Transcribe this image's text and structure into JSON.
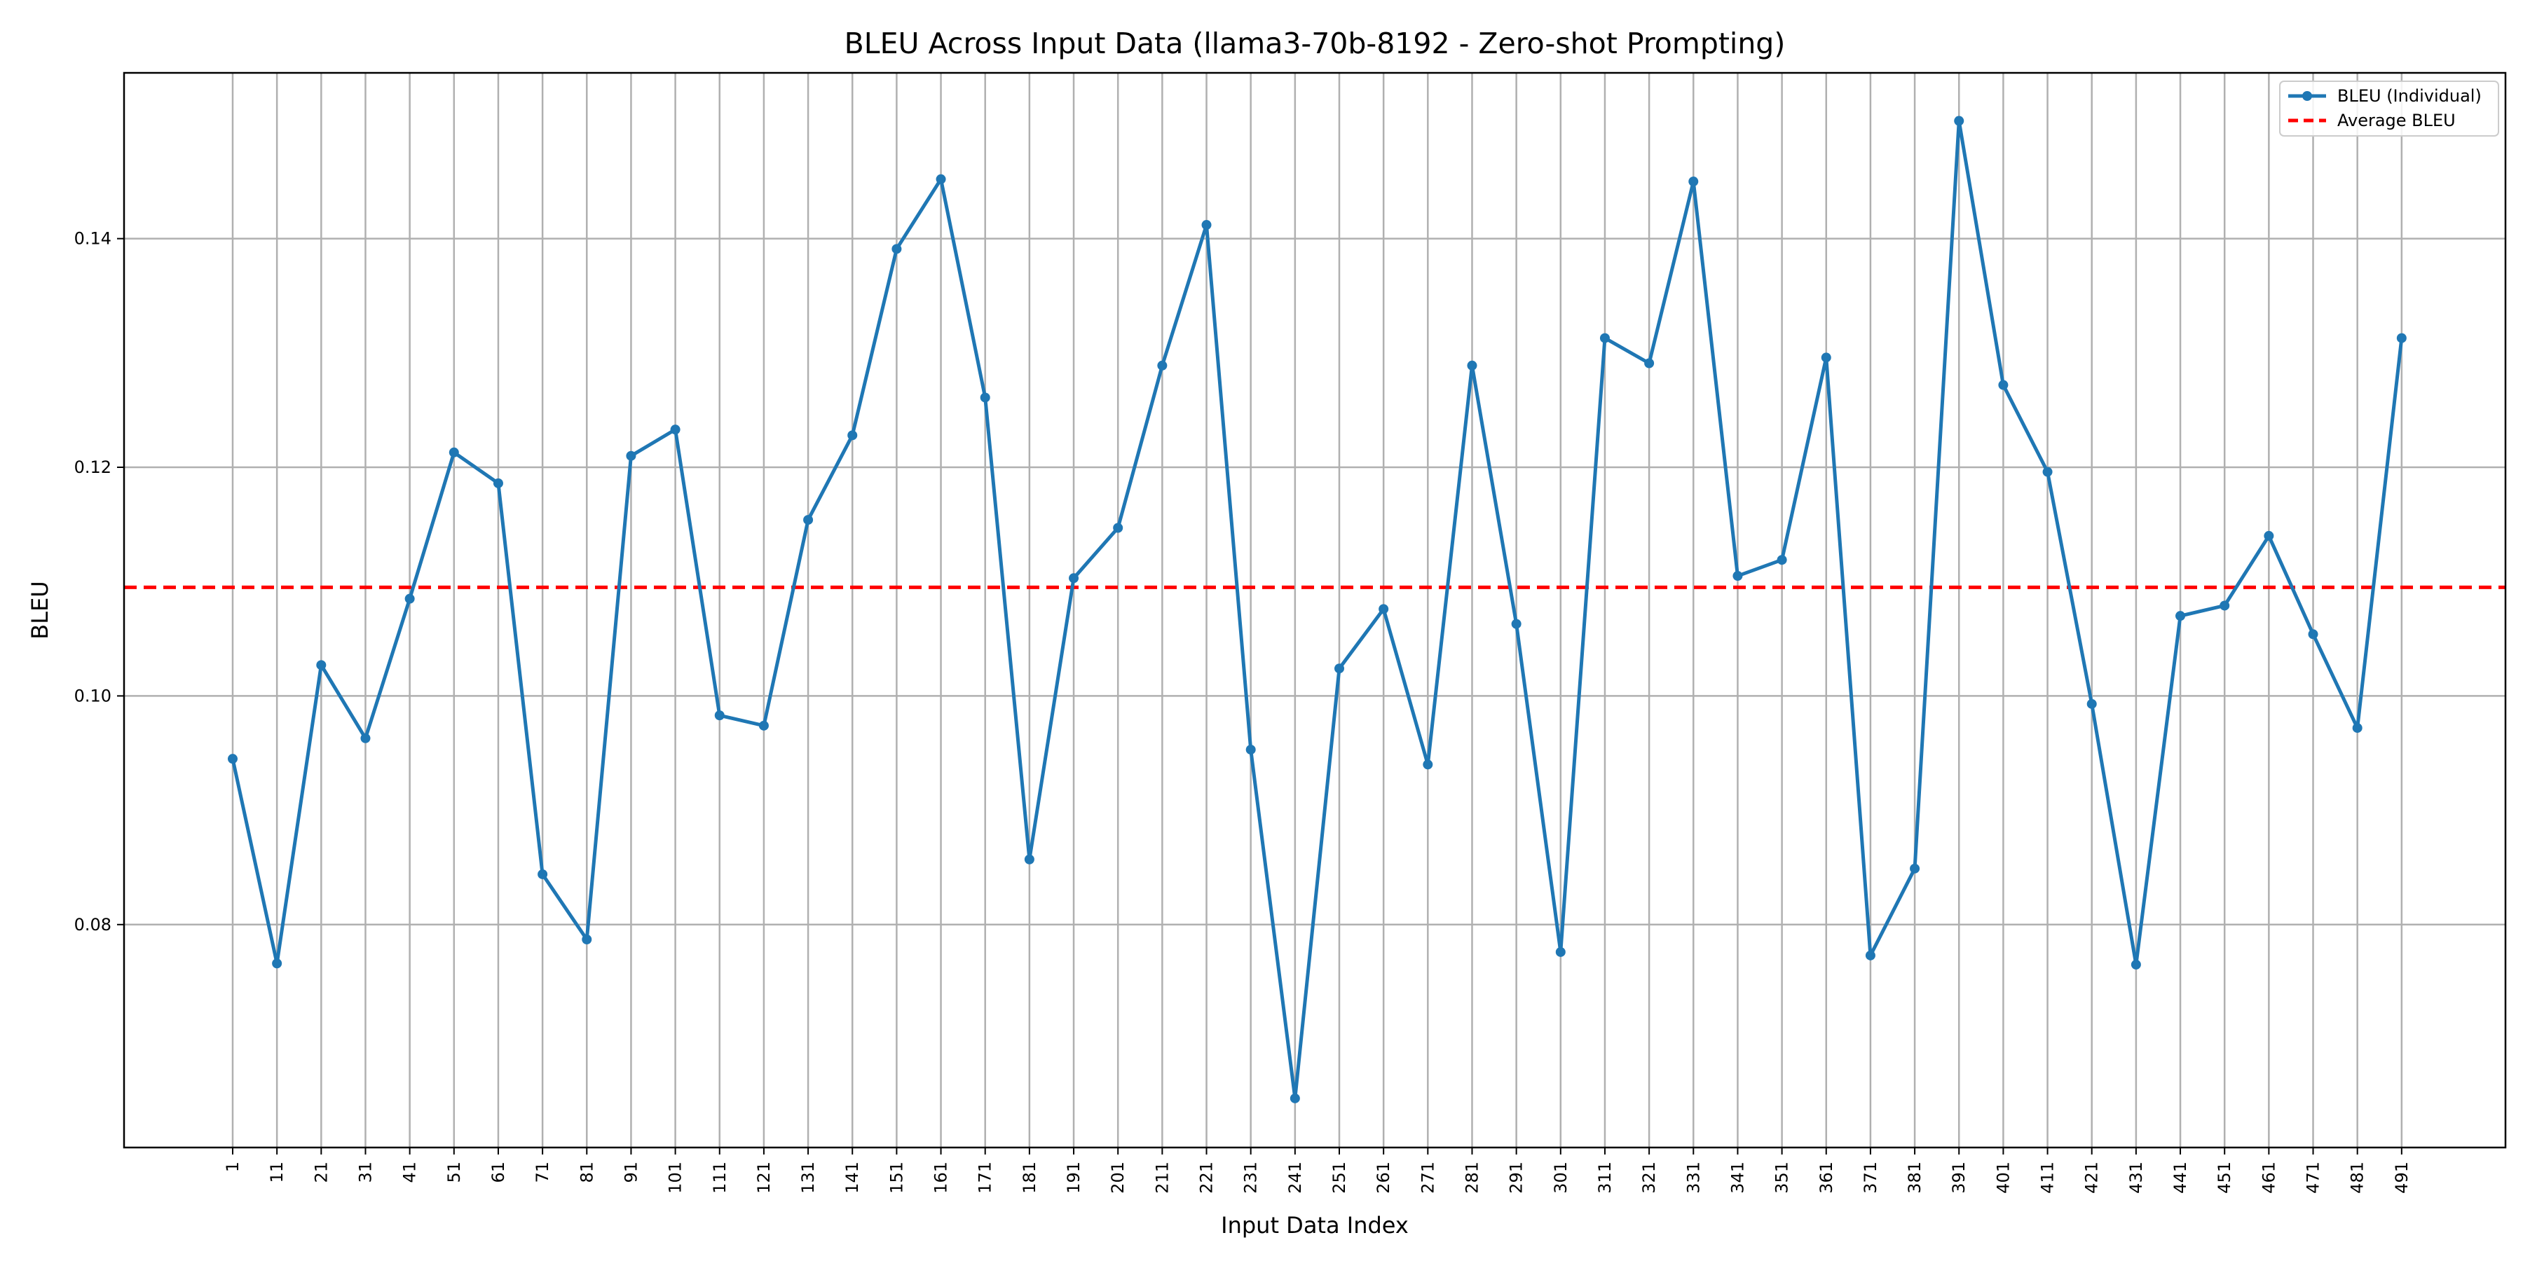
{
  "chart_data": {
    "type": "line",
    "title": "BLEU Across Input Data (llama3-70b-8192 - Zero-shot Prompting)",
    "xlabel": "Input Data Index",
    "ylabel": "BLEU",
    "categories": [
      "1",
      "11",
      "21",
      "31",
      "41",
      "51",
      "61",
      "71",
      "81",
      "91",
      "101",
      "111",
      "121",
      "131",
      "141",
      "151",
      "161",
      "171",
      "181",
      "191",
      "201",
      "211",
      "221",
      "231",
      "241",
      "251",
      "261",
      "271",
      "281",
      "291",
      "301",
      "311",
      "321",
      "331",
      "341",
      "351",
      "361",
      "371",
      "381",
      "391",
      "401",
      "411",
      "421",
      "431",
      "441",
      "451",
      "461",
      "471",
      "481",
      "491"
    ],
    "series": [
      {
        "name": "BLEU (Individual)",
        "color": "#1f77b4",
        "values": [
          0.0945,
          0.0766,
          0.1027,
          0.0963,
          0.1085,
          0.1213,
          0.1186,
          0.0844,
          0.0787,
          0.121,
          0.1233,
          0.0983,
          0.0974,
          0.1154,
          0.1228,
          0.1391,
          0.1452,
          0.1261,
          0.0857,
          0.1103,
          0.1147,
          0.1289,
          0.1412,
          0.0953,
          0.0648,
          0.1024,
          0.1076,
          0.094,
          0.1289,
          0.1063,
          0.0776,
          0.1313,
          0.1291,
          0.145,
          0.1105,
          0.1119,
          0.1296,
          0.0773,
          0.0849,
          0.1503,
          0.1272,
          0.1196,
          0.0993,
          0.0765,
          0.107,
          0.1079,
          0.114,
          0.1054,
          0.0972,
          0.1313
        ]
      }
    ],
    "average": {
      "name": "Average BLEU",
      "value": 0.1095,
      "color": "#ff0000"
    },
    "yticks": [
      0.08,
      0.1,
      0.12,
      0.14
    ],
    "ytick_labels": [
      "0.08",
      "0.10",
      "0.12",
      "0.14"
    ],
    "ylim": [
      0.0605,
      0.1545
    ],
    "grid": true,
    "legend_position": "top-right"
  }
}
